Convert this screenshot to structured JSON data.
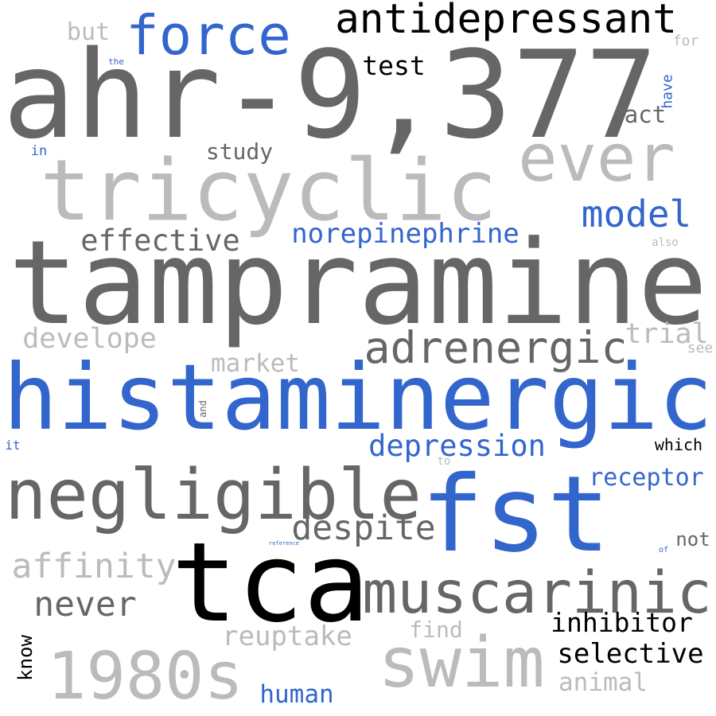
{
  "palette": {
    "dark": "#666666",
    "light": "#bbbbbb",
    "blue": "#3366cc",
    "black": "#000000"
  },
  "words": [
    {
      "id": "ahr",
      "text": "ahr-9,377",
      "color": "dark"
    },
    {
      "id": "tampramine",
      "text": "tampramine",
      "color": "dark"
    },
    {
      "id": "histaminergic",
      "text": "histaminergic",
      "color": "blue"
    },
    {
      "id": "tricyclic",
      "text": "tricyclic",
      "color": "light"
    },
    {
      "id": "tca",
      "text": "tca",
      "color": "black"
    },
    {
      "id": "fst",
      "text": "fst",
      "color": "blue"
    },
    {
      "id": "negligible",
      "text": "negligible",
      "color": "dark"
    },
    {
      "id": "muscarinic",
      "text": "muscarinic",
      "color": "dark"
    },
    {
      "id": "1980s",
      "text": "1980s",
      "color": "light"
    },
    {
      "id": "swim",
      "text": "swim",
      "color": "light"
    },
    {
      "id": "ever",
      "text": "ever",
      "color": "light"
    },
    {
      "id": "force",
      "text": "force",
      "color": "blue"
    },
    {
      "id": "antidepressant",
      "text": "antidepressant",
      "color": "black"
    },
    {
      "id": "adrenergic",
      "text": "adrenergic",
      "color": "dark"
    },
    {
      "id": "model",
      "text": "model",
      "color": "blue"
    },
    {
      "id": "despite",
      "text": "despite",
      "color": "dark"
    },
    {
      "id": "never",
      "text": "never",
      "color": "dark"
    },
    {
      "id": "affinity",
      "text": "affinity",
      "color": "light"
    },
    {
      "id": "effective",
      "text": "effective",
      "color": "dark"
    },
    {
      "id": "depression",
      "text": "depression",
      "color": "blue"
    },
    {
      "id": "norepinephrine",
      "text": "norepinephrine",
      "color": "blue"
    },
    {
      "id": "develope",
      "text": "develope",
      "color": "light"
    },
    {
      "id": "reuptake",
      "text": "reuptake",
      "color": "light"
    },
    {
      "id": "selective",
      "text": "selective",
      "color": "black"
    },
    {
      "id": "inhibitor",
      "text": "inhibitor",
      "color": "black"
    },
    {
      "id": "receptor",
      "text": "receptor",
      "color": "blue"
    },
    {
      "id": "trial",
      "text": "trial",
      "color": "light"
    },
    {
      "id": "market",
      "text": "market",
      "color": "light"
    },
    {
      "id": "test",
      "text": "test",
      "color": "black"
    },
    {
      "id": "study",
      "text": "study",
      "color": "dark"
    },
    {
      "id": "animal",
      "text": "animal",
      "color": "light"
    },
    {
      "id": "human",
      "text": "human",
      "color": "blue"
    },
    {
      "id": "act",
      "text": "act",
      "color": "dark"
    },
    {
      "id": "but",
      "text": "but",
      "color": "light"
    },
    {
      "id": "find",
      "text": "find",
      "color": "light"
    },
    {
      "id": "know",
      "text": "know",
      "color": "black"
    },
    {
      "id": "not",
      "text": "not",
      "color": "dark"
    },
    {
      "id": "which",
      "text": "which",
      "color": "black"
    },
    {
      "id": "have",
      "text": "have",
      "color": "blue"
    },
    {
      "id": "for",
      "text": "for",
      "color": "light"
    },
    {
      "id": "see",
      "text": "see",
      "color": "light"
    },
    {
      "id": "also",
      "text": "also",
      "color": "light"
    },
    {
      "id": "in",
      "text": "in",
      "color": "blue"
    },
    {
      "id": "it",
      "text": "it",
      "color": "blue"
    },
    {
      "id": "to",
      "text": "to",
      "color": "light"
    },
    {
      "id": "and",
      "text": "and",
      "color": "dark"
    },
    {
      "id": "the",
      "text": "the",
      "color": "blue"
    },
    {
      "id": "of",
      "text": "of",
      "color": "blue"
    },
    {
      "id": "reference",
      "text": "reference",
      "color": "blue"
    }
  ]
}
